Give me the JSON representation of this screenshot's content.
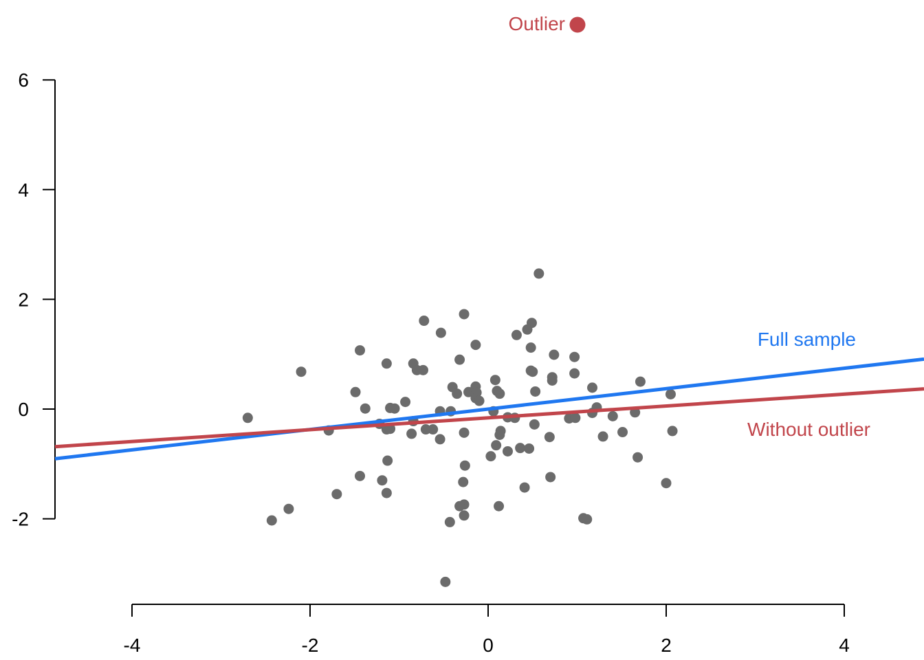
{
  "chart_data": {
    "type": "scatter",
    "title": "",
    "xlabel": "",
    "ylabel": "",
    "xlim": [
      -4.9,
      4.9
    ],
    "ylim": [
      -3.5,
      7.3
    ],
    "x_ticks": [
      -4,
      -2,
      0,
      2,
      4
    ],
    "y_ticks": [
      -2,
      0,
      2,
      4,
      6
    ],
    "x_tick_labels": [
      "-4",
      "-2",
      "0",
      "2",
      "4"
    ],
    "y_tick_labels": [
      "-2",
      "0",
      "2",
      "4",
      "6"
    ],
    "grid": false,
    "points": [
      {
        "x": 0.57,
        "y": 2.47
      },
      {
        "x": -0.72,
        "y": 1.61
      },
      {
        "x": -0.27,
        "y": 1.73
      },
      {
        "x": 0.49,
        "y": 1.57
      },
      {
        "x": -0.53,
        "y": 1.39
      },
      {
        "x": 0.32,
        "y": 1.35
      },
      {
        "x": 0.44,
        "y": 1.45
      },
      {
        "x": -0.14,
        "y": 1.17
      },
      {
        "x": 0.48,
        "y": 1.12
      },
      {
        "x": -1.44,
        "y": 1.07
      },
      {
        "x": 0.74,
        "y": 0.99
      },
      {
        "x": 0.97,
        "y": 0.95
      },
      {
        "x": -0.32,
        "y": 0.9
      },
      {
        "x": -1.14,
        "y": 0.83
      },
      {
        "x": -0.84,
        "y": 0.83
      },
      {
        "x": -0.8,
        "y": 0.71
      },
      {
        "x": -0.73,
        "y": 0.71
      },
      {
        "x": 0.48,
        "y": 0.7
      },
      {
        "x": 0.5,
        "y": 0.68
      },
      {
        "x": -2.1,
        "y": 0.68
      },
      {
        "x": 0.97,
        "y": 0.65
      },
      {
        "x": 0.72,
        "y": 0.58
      },
      {
        "x": 0.72,
        "y": 0.52
      },
      {
        "x": 0.08,
        "y": 0.53
      },
      {
        "x": 1.71,
        "y": 0.5
      },
      {
        "x": -0.4,
        "y": 0.4
      },
      {
        "x": -0.14,
        "y": 0.41
      },
      {
        "x": 1.17,
        "y": 0.39
      },
      {
        "x": 0.1,
        "y": 0.33
      },
      {
        "x": 0.53,
        "y": 0.32
      },
      {
        "x": -1.49,
        "y": 0.31
      },
      {
        "x": -0.22,
        "y": 0.31
      },
      {
        "x": -0.13,
        "y": 0.3
      },
      {
        "x": 0.13,
        "y": 0.28
      },
      {
        "x": -0.35,
        "y": 0.28
      },
      {
        "x": 2.05,
        "y": 0.27
      },
      {
        "x": -0.14,
        "y": 0.2
      },
      {
        "x": -0.1,
        "y": 0.15
      },
      {
        "x": -0.93,
        "y": 0.13
      },
      {
        "x": -1.1,
        "y": 0.02
      },
      {
        "x": -1.05,
        "y": 0.01
      },
      {
        "x": -1.38,
        "y": 0.01
      },
      {
        "x": 1.22,
        "y": 0.03
      },
      {
        "x": -0.54,
        "y": -0.04
      },
      {
        "x": -0.42,
        "y": -0.04
      },
      {
        "x": 0.06,
        "y": -0.04
      },
      {
        "x": 1.65,
        "y": -0.06
      },
      {
        "x": 1.17,
        "y": -0.07
      },
      {
        "x": 1.4,
        "y": -0.13
      },
      {
        "x": 0.22,
        "y": -0.15
      },
      {
        "x": 0.3,
        "y": -0.16
      },
      {
        "x": 0.91,
        "y": -0.17
      },
      {
        "x": 0.98,
        "y": -0.16
      },
      {
        "x": -2.7,
        "y": -0.16
      },
      {
        "x": -0.84,
        "y": -0.22
      },
      {
        "x": -1.22,
        "y": -0.27
      },
      {
        "x": 0.52,
        "y": -0.28
      },
      {
        "x": -1.14,
        "y": -0.37
      },
      {
        "x": -1.1,
        "y": -0.36
      },
      {
        "x": -0.7,
        "y": -0.37
      },
      {
        "x": -0.62,
        "y": -0.37
      },
      {
        "x": 0.14,
        "y": -0.4
      },
      {
        "x": -1.79,
        "y": -0.39
      },
      {
        "x": 1.51,
        "y": -0.42
      },
      {
        "x": -0.86,
        "y": -0.45
      },
      {
        "x": -0.27,
        "y": -0.43
      },
      {
        "x": 2.07,
        "y": -0.4
      },
      {
        "x": 0.13,
        "y": -0.47
      },
      {
        "x": 1.29,
        "y": -0.5
      },
      {
        "x": 0.69,
        "y": -0.51
      },
      {
        "x": -0.54,
        "y": -0.55
      },
      {
        "x": 0.09,
        "y": -0.66
      },
      {
        "x": 0.36,
        "y": -0.71
      },
      {
        "x": 0.46,
        "y": -0.72
      },
      {
        "x": 0.22,
        "y": -0.77
      },
      {
        "x": 0.03,
        "y": -0.86
      },
      {
        "x": 1.68,
        "y": -0.88
      },
      {
        "x": -1.13,
        "y": -0.94
      },
      {
        "x": -0.26,
        "y": -1.03
      },
      {
        "x": -1.44,
        "y": -1.22
      },
      {
        "x": 0.7,
        "y": -1.24
      },
      {
        "x": -1.19,
        "y": -1.3
      },
      {
        "x": -0.28,
        "y": -1.33
      },
      {
        "x": 2.0,
        "y": -1.35
      },
      {
        "x": 0.41,
        "y": -1.43
      },
      {
        "x": -1.14,
        "y": -1.53
      },
      {
        "x": -1.7,
        "y": -1.55
      },
      {
        "x": -0.27,
        "y": -1.74
      },
      {
        "x": -0.32,
        "y": -1.77
      },
      {
        "x": 0.12,
        "y": -1.77
      },
      {
        "x": -2.24,
        "y": -1.82
      },
      {
        "x": -0.27,
        "y": -1.94
      },
      {
        "x": 1.07,
        "y": -1.99
      },
      {
        "x": 1.11,
        "y": -2.01
      },
      {
        "x": -2.43,
        "y": -2.03
      },
      {
        "x": -0.43,
        "y": -2.06
      },
      {
        "x": -0.48,
        "y": -3.15
      }
    ],
    "outlier": {
      "x": 1.0,
      "y": 7.0,
      "label": "Outlier",
      "color": "#c1454b"
    },
    "fit_lines": [
      {
        "name": "Full sample",
        "intercept": 0.0,
        "slope": 0.186,
        "color": "#1f77f0"
      },
      {
        "name": "Without outlier",
        "intercept": -0.16,
        "slope": 0.108,
        "color": "#c1454b"
      }
    ],
    "point_color": "#6b6b6b"
  }
}
